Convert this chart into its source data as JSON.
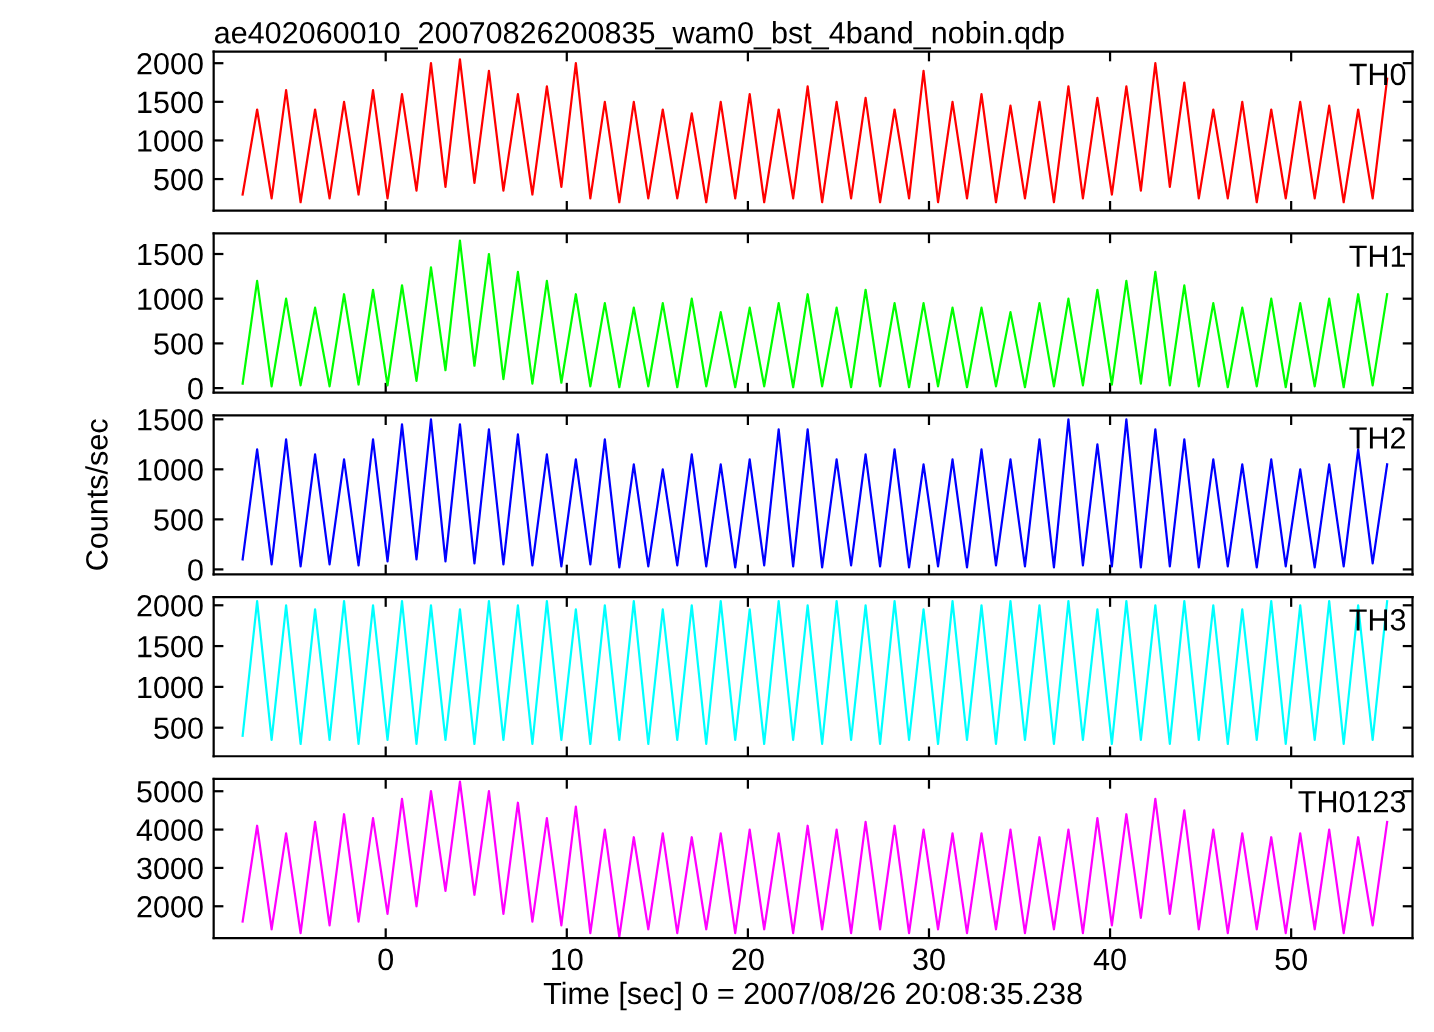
{
  "chart_data": [
    {
      "type": "line",
      "title": "ae402060010_20070826200835_wam0_bst_4band_nobin.qdp",
      "tick_labels": "y",
      "xlim": [
        -9.5,
        56.7
      ],
      "xticks": [
        0,
        10,
        20,
        30,
        40,
        50
      ],
      "ylim": [
        90,
        2150
      ],
      "yticks": [
        500,
        1000,
        1500,
        2000
      ],
      "x": [
        -7.9,
        -7.1,
        -6.3,
        -5.5,
        -4.7,
        -3.9,
        -3.1,
        -2.3,
        -1.5,
        -0.7,
        0.1,
        0.9,
        1.7,
        2.5,
        3.3,
        4.1,
        4.9,
        5.7,
        6.5,
        7.3,
        8.1,
        8.9,
        9.7,
        10.5,
        11.3,
        12.1,
        12.9,
        13.7,
        14.5,
        15.3,
        16.1,
        16.9,
        17.7,
        18.5,
        19.3,
        20.1,
        20.9,
        21.7,
        22.5,
        23.3,
        24.1,
        24.9,
        25.7,
        26.5,
        27.3,
        28.1,
        28.9,
        29.7,
        30.5,
        31.3,
        32.1,
        32.9,
        33.7,
        34.5,
        35.3,
        36.1,
        36.9,
        37.7,
        38.5,
        39.3,
        40.1,
        40.9,
        41.7,
        42.5,
        43.3,
        44.1,
        44.9,
        45.7,
        46.5,
        47.3,
        48.1,
        48.9,
        49.7,
        50.5,
        51.3,
        52.1,
        52.9,
        53.7,
        54.5,
        55.3
      ],
      "series": [
        {
          "name": "TH0",
          "color": "#ff0000",
          "values": [
            300,
            1400,
            250,
            1650,
            200,
            1400,
            250,
            1500,
            300,
            1650,
            250,
            1600,
            350,
            2000,
            400,
            2050,
            450,
            1900,
            350,
            1600,
            300,
            1700,
            400,
            2000,
            250,
            1500,
            200,
            1500,
            250,
            1400,
            250,
            1350,
            200,
            1500,
            250,
            1600,
            200,
            1400,
            250,
            1700,
            200,
            1500,
            250,
            1550,
            200,
            1400,
            250,
            1900,
            200,
            1500,
            250,
            1600,
            200,
            1450,
            250,
            1500,
            200,
            1700,
            250,
            1550,
            300,
            1700,
            350,
            2000,
            400,
            1750,
            250,
            1400,
            250,
            1500,
            200,
            1400,
            250,
            1500,
            250,
            1450,
            200,
            1400,
            250,
            1800
          ]
        }
      ]
    },
    {
      "type": "line",
      "tick_labels": "y",
      "xlim": [
        -9.5,
        56.7
      ],
      "xticks": [
        0,
        10,
        20,
        30,
        40,
        50
      ],
      "ylim": [
        -50,
        1730
      ],
      "yticks": [
        0,
        500,
        1000,
        1500
      ],
      "x": [
        -7.9,
        -7.1,
        -6.3,
        -5.5,
        -4.7,
        -3.9,
        -3.1,
        -2.3,
        -1.5,
        -0.7,
        0.1,
        0.9,
        1.7,
        2.5,
        3.3,
        4.1,
        4.9,
        5.7,
        6.5,
        7.3,
        8.1,
        8.9,
        9.7,
        10.5,
        11.3,
        12.1,
        12.9,
        13.7,
        14.5,
        15.3,
        16.1,
        16.9,
        17.7,
        18.5,
        19.3,
        20.1,
        20.9,
        21.7,
        22.5,
        23.3,
        24.1,
        24.9,
        25.7,
        26.5,
        27.3,
        28.1,
        28.9,
        29.7,
        30.5,
        31.3,
        32.1,
        32.9,
        33.7,
        34.5,
        35.3,
        36.1,
        36.9,
        37.7,
        38.5,
        39.3,
        40.1,
        40.9,
        41.7,
        42.5,
        43.3,
        44.1,
        44.9,
        45.7,
        46.5,
        47.3,
        48.1,
        48.9,
        49.7,
        50.5,
        51.3,
        52.1,
        52.9,
        53.7,
        54.5,
        55.3
      ],
      "series": [
        {
          "name": "TH1",
          "color": "#00ff00",
          "values": [
            50,
            1200,
            20,
            1000,
            30,
            900,
            20,
            1050,
            40,
            1100,
            30,
            1150,
            80,
            1350,
            200,
            1650,
            250,
            1500,
            100,
            1300,
            50,
            1200,
            60,
            1050,
            20,
            950,
            10,
            900,
            20,
            950,
            10,
            1000,
            20,
            850,
            10,
            900,
            20,
            950,
            10,
            1050,
            20,
            900,
            10,
            1100,
            20,
            950,
            10,
            950,
            20,
            900,
            10,
            900,
            20,
            850,
            10,
            950,
            20,
            1000,
            30,
            1100,
            40,
            1200,
            50,
            1300,
            30,
            1150,
            20,
            950,
            10,
            900,
            20,
            1000,
            10,
            950,
            20,
            1000,
            10,
            1050,
            30,
            1050
          ]
        }
      ]
    },
    {
      "type": "line",
      "ylabel": "Counts/sec",
      "tick_labels": "y",
      "xlim": [
        -9.5,
        56.7
      ],
      "xticks": [
        0,
        10,
        20,
        30,
        40,
        50
      ],
      "ylim": [
        -50,
        1540
      ],
      "yticks": [
        0,
        500,
        1000,
        1500
      ],
      "x": [
        -7.9,
        -7.1,
        -6.3,
        -5.5,
        -4.7,
        -3.9,
        -3.1,
        -2.3,
        -1.5,
        -0.7,
        0.1,
        0.9,
        1.7,
        2.5,
        3.3,
        4.1,
        4.9,
        5.7,
        6.5,
        7.3,
        8.1,
        8.9,
        9.7,
        10.5,
        11.3,
        12.1,
        12.9,
        13.7,
        14.5,
        15.3,
        16.1,
        16.9,
        17.7,
        18.5,
        19.3,
        20.1,
        20.9,
        21.7,
        22.5,
        23.3,
        24.1,
        24.9,
        25.7,
        26.5,
        27.3,
        28.1,
        28.9,
        29.7,
        30.5,
        31.3,
        32.1,
        32.9,
        33.7,
        34.5,
        35.3,
        36.1,
        36.9,
        37.7,
        38.5,
        39.3,
        40.1,
        40.9,
        41.7,
        42.5,
        43.3,
        44.1,
        44.9,
        45.7,
        46.5,
        47.3,
        48.1,
        48.9,
        49.7,
        50.5,
        51.3,
        52.1,
        52.9,
        53.7,
        54.5,
        55.3
      ],
      "series": [
        {
          "name": "TH2",
          "color": "#0000ff",
          "values": [
            100,
            1200,
            50,
            1300,
            30,
            1150,
            50,
            1100,
            40,
            1300,
            80,
            1450,
            100,
            1500,
            80,
            1450,
            60,
            1400,
            50,
            1350,
            40,
            1150,
            30,
            1100,
            50,
            1300,
            20,
            1050,
            30,
            1000,
            40,
            1150,
            30,
            1050,
            20,
            1100,
            40,
            1400,
            30,
            1400,
            20,
            1100,
            40,
            1150,
            30,
            1200,
            20,
            1050,
            30,
            1100,
            20,
            1200,
            40,
            1100,
            30,
            1300,
            20,
            1500,
            40,
            1250,
            30,
            1500,
            20,
            1400,
            30,
            1300,
            20,
            1100,
            30,
            1050,
            20,
            1100,
            30,
            1000,
            20,
            1050,
            30,
            1200,
            60,
            1050
          ]
        }
      ]
    },
    {
      "type": "line",
      "tick_labels": "y",
      "xlim": [
        -9.5,
        56.7
      ],
      "xticks": [
        0,
        10,
        20,
        30,
        40,
        50
      ],
      "ylim": [
        150,
        2100
      ],
      "yticks": [
        500,
        1000,
        1500,
        2000
      ],
      "x": [
        -7.9,
        -7.1,
        -6.3,
        -5.5,
        -4.7,
        -3.9,
        -3.1,
        -2.3,
        -1.5,
        -0.7,
        0.1,
        0.9,
        1.7,
        2.5,
        3.3,
        4.1,
        4.9,
        5.7,
        6.5,
        7.3,
        8.1,
        8.9,
        9.7,
        10.5,
        11.3,
        12.1,
        12.9,
        13.7,
        14.5,
        15.3,
        16.1,
        16.9,
        17.7,
        18.5,
        19.3,
        20.1,
        20.9,
        21.7,
        22.5,
        23.3,
        24.1,
        24.9,
        25.7,
        26.5,
        27.3,
        28.1,
        28.9,
        29.7,
        30.5,
        31.3,
        32.1,
        32.9,
        33.7,
        34.5,
        35.3,
        36.1,
        36.9,
        37.7,
        38.5,
        39.3,
        40.1,
        40.9,
        41.7,
        42.5,
        43.3,
        44.1,
        44.9,
        45.7,
        46.5,
        47.3,
        48.1,
        48.9,
        49.7,
        50.5,
        51.3,
        52.1,
        52.9,
        53.7,
        54.5,
        55.3
      ],
      "series": [
        {
          "name": "TH3",
          "color": "#00ffff",
          "values": [
            400,
            2050,
            350,
            2000,
            300,
            1950,
            350,
            2050,
            300,
            2000,
            350,
            2050,
            300,
            2000,
            350,
            1950,
            300,
            2050,
            350,
            2000,
            300,
            2050,
            350,
            1950,
            300,
            2000,
            350,
            2050,
            300,
            1950,
            350,
            2000,
            300,
            2050,
            350,
            1950,
            300,
            2050,
            350,
            2000,
            300,
            2050,
            350,
            2000,
            300,
            2050,
            350,
            1950,
            300,
            2050,
            350,
            2000,
            300,
            2050,
            350,
            2000,
            300,
            2050,
            350,
            1950,
            300,
            2050,
            350,
            2000,
            300,
            2050,
            350,
            2000,
            300,
            1950,
            350,
            2050,
            300,
            2000,
            350,
            2050,
            300,
            2000,
            350,
            2050
          ]
        }
      ]
    },
    {
      "type": "line",
      "xlabel": "Time [sec] 0 = 2007/08/26 20:08:35.238",
      "xlim": [
        -9.5,
        56.7
      ],
      "xticks": [
        0,
        10,
        20,
        30,
        40,
        50
      ],
      "ylim": [
        1170,
        5320
      ],
      "yticks": [
        2000,
        3000,
        4000,
        5000
      ],
      "x": [
        -7.9,
        -7.1,
        -6.3,
        -5.5,
        -4.7,
        -3.9,
        -3.1,
        -2.3,
        -1.5,
        -0.7,
        0.1,
        0.9,
        1.7,
        2.5,
        3.3,
        4.1,
        4.9,
        5.7,
        6.5,
        7.3,
        8.1,
        8.9,
        9.7,
        10.5,
        11.3,
        12.1,
        12.9,
        13.7,
        14.5,
        15.3,
        16.1,
        16.9,
        17.7,
        18.5,
        19.3,
        20.1,
        20.9,
        21.7,
        22.5,
        23.3,
        24.1,
        24.9,
        25.7,
        26.5,
        27.3,
        28.1,
        28.9,
        29.7,
        30.5,
        31.3,
        32.1,
        32.9,
        33.7,
        34.5,
        35.3,
        36.1,
        36.9,
        37.7,
        38.5,
        39.3,
        40.1,
        40.9,
        41.7,
        42.5,
        43.3,
        44.1,
        44.9,
        45.7,
        46.5,
        47.3,
        48.1,
        48.9,
        49.7,
        50.5,
        51.3,
        52.1,
        52.9,
        53.7,
        54.5,
        55.3
      ],
      "series": [
        {
          "name": "TH0123",
          "color": "#ff00ff",
          "values": [
            1600,
            4100,
            1400,
            3900,
            1300,
            4200,
            1500,
            4400,
            1600,
            4300,
            1800,
            4800,
            2000,
            5000,
            2400,
            5250,
            2300,
            5000,
            1800,
            4700,
            1600,
            4300,
            1500,
            4600,
            1300,
            4000,
            1200,
            3800,
            1400,
            3900,
            1300,
            3800,
            1400,
            3900,
            1300,
            4000,
            1400,
            3900,
            1300,
            4100,
            1400,
            4000,
            1300,
            4200,
            1400,
            4100,
            1300,
            4000,
            1400,
            3900,
            1300,
            3900,
            1400,
            4000,
            1300,
            3800,
            1400,
            4000,
            1300,
            4300,
            1500,
            4400,
            1700,
            4800,
            1800,
            4500,
            1400,
            4000,
            1300,
            3900,
            1400,
            3800,
            1300,
            3900,
            1400,
            4000,
            1300,
            3800,
            1500,
            4200
          ]
        }
      ]
    }
  ]
}
